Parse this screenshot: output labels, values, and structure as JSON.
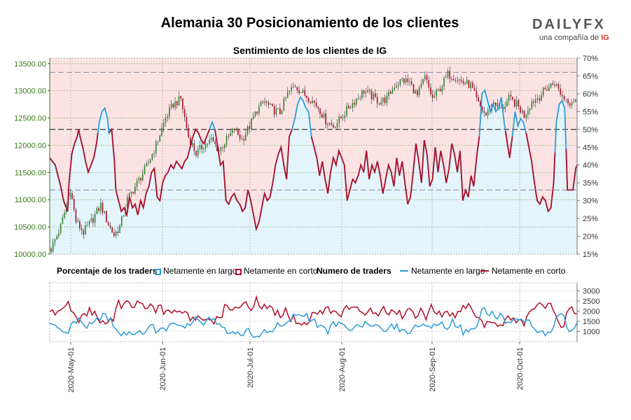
{
  "header": {
    "title": "Alemania 30 Posicionamiento de los clientes",
    "subtitle": "Sentimiento de los clientes de IG"
  },
  "logo": {
    "brand": "DAILYFX",
    "tagline": "una compañía de",
    "ig": "IG"
  },
  "legend": {
    "pct_header": "Porcentaje de los traders",
    "long_label": "Netamente en largo",
    "short_label": "Netamente en corto",
    "count_header": "Numero de traders",
    "count_long_label": "Netamente en largo",
    "count_short_label": "Netamente en corto"
  },
  "colors": {
    "long": "#2e9bd6",
    "short": "#b0102a",
    "long_fill": "#e4f4fb",
    "short_fill": "#fbe3e4",
    "candle_up": "#2a8a2a",
    "candle_down": "#b0102a",
    "axis_left": "#3a7a1a",
    "grid": "#7aaa5a"
  },
  "chart_data": [
    {
      "type": "candlestick+line",
      "title": "Sentimiento de los clientes de IG",
      "left_axis": {
        "min": 10000,
        "max": 13600,
        "ticks": [
          "10000.00",
          "10500.00",
          "11000.00",
          "11500.00",
          "12000.00",
          "12500.00",
          "13000.00",
          "13500.00"
        ]
      },
      "right_axis": {
        "min": 15,
        "max": 70,
        "ticks": [
          "15%",
          "20%",
          "25%",
          "30%",
          "35%",
          "40%",
          "45%",
          "50%",
          "55%",
          "60%",
          "65%",
          "70%"
        ]
      },
      "reference_lines_pct": [
        33,
        50,
        66
      ],
      "price_keypoints": [
        [
          0,
          10100
        ],
        [
          5,
          10500
        ],
        [
          8,
          10900
        ],
        [
          10,
          11200
        ],
        [
          13,
          10600
        ],
        [
          17,
          10400
        ],
        [
          22,
          10650
        ],
        [
          26,
          10900
        ],
        [
          30,
          10550
        ],
        [
          33,
          10350
        ],
        [
          36,
          10500
        ],
        [
          40,
          11000
        ],
        [
          45,
          11300
        ],
        [
          50,
          11600
        ],
        [
          55,
          12000
        ],
        [
          60,
          12500
        ],
        [
          64,
          12750
        ],
        [
          68,
          12850
        ],
        [
          72,
          12150
        ],
        [
          76,
          11850
        ],
        [
          80,
          12000
        ],
        [
          84,
          12100
        ],
        [
          88,
          11900
        ],
        [
          92,
          12100
        ],
        [
          96,
          12300
        ],
        [
          100,
          12100
        ],
        [
          104,
          12350
        ],
        [
          108,
          12650
        ],
        [
          112,
          12800
        ],
        [
          116,
          12650
        ],
        [
          120,
          12600
        ],
        [
          124,
          12950
        ],
        [
          128,
          13100
        ],
        [
          132,
          12950
        ],
        [
          136,
          12850
        ],
        [
          140,
          12700
        ],
        [
          144,
          12450
        ],
        [
          148,
          12350
        ],
        [
          152,
          12500
        ],
        [
          156,
          12700
        ],
        [
          160,
          12850
        ],
        [
          164,
          13000
        ],
        [
          168,
          12900
        ],
        [
          172,
          12800
        ],
        [
          176,
          12850
        ],
        [
          180,
          13100
        ],
        [
          184,
          13200
        ],
        [
          188,
          13150
        ],
        [
          192,
          12900
        ],
        [
          196,
          13250
        ],
        [
          200,
          12850
        ],
        [
          204,
          13050
        ],
        [
          208,
          13300
        ],
        [
          212,
          13250
        ],
        [
          216,
          13150
        ],
        [
          220,
          13100
        ],
        [
          224,
          12750
        ],
        [
          228,
          12550
        ],
        [
          232,
          12800
        ],
        [
          236,
          12650
        ],
        [
          240,
          12850
        ],
        [
          244,
          12750
        ],
        [
          248,
          12550
        ],
        [
          252,
          12800
        ],
        [
          256,
          12900
        ],
        [
          260,
          13050
        ],
        [
          264,
          13150
        ],
        [
          268,
          12900
        ],
        [
          272,
          12800
        ],
        [
          275,
          12850
        ]
      ],
      "long_pct_keypoints": [
        [
          0,
          42
        ],
        [
          4,
          40
        ],
        [
          6,
          37
        ],
        [
          8,
          34
        ],
        [
          10,
          30
        ],
        [
          12,
          28
        ],
        [
          13,
          27
        ],
        [
          14,
          35
        ],
        [
          16,
          43
        ],
        [
          18,
          46
        ],
        [
          20,
          48
        ],
        [
          21,
          50
        ],
        [
          22,
          48
        ],
        [
          24,
          45
        ],
        [
          26,
          41
        ],
        [
          28,
          38
        ],
        [
          30,
          40
        ],
        [
          32,
          42
        ],
        [
          34,
          46
        ],
        [
          36,
          52
        ],
        [
          38,
          55
        ],
        [
          40,
          56
        ],
        [
          42,
          53
        ],
        [
          43,
          49
        ],
        [
          45,
          50
        ],
        [
          47,
          41
        ],
        [
          48,
          33
        ],
        [
          50,
          30
        ],
        [
          52,
          27
        ],
        [
          54,
          28
        ],
        [
          56,
          26
        ],
        [
          58,
          31
        ],
        [
          60,
          28
        ],
        [
          62,
          29
        ],
        [
          64,
          26
        ],
        [
          66,
          30
        ],
        [
          68,
          28
        ],
        [
          70,
          32
        ],
        [
          72,
          34
        ],
        [
          74,
          38
        ],
        [
          76,
          39
        ],
        [
          78,
          31
        ],
        [
          80,
          30
        ],
        [
          82,
          35
        ],
        [
          84,
          37
        ],
        [
          86,
          38
        ],
        [
          88,
          40
        ],
        [
          90,
          39
        ],
        [
          92,
          41
        ],
        [
          94,
          40
        ],
        [
          96,
          39
        ],
        [
          98,
          41
        ],
        [
          100,
          42
        ],
        [
          102,
          45
        ],
        [
          104,
          48
        ],
        [
          106,
          50
        ],
        [
          108,
          49
        ],
        [
          110,
          47
        ],
        [
          112,
          46
        ],
        [
          114,
          48
        ],
        [
          116,
          50
        ],
        [
          118,
          52
        ],
        [
          120,
          50
        ],
        [
          122,
          45
        ],
        [
          124,
          40
        ],
        [
          126,
          41
        ],
        [
          128,
          30
        ],
        [
          130,
          29
        ],
        [
          132,
          31
        ],
        [
          134,
          32
        ],
        [
          136,
          30
        ],
        [
          138,
          29
        ],
        [
          140,
          27
        ],
        [
          142,
          28
        ],
        [
          144,
          33
        ],
        [
          146,
          30
        ],
        [
          148,
          26
        ],
        [
          150,
          22
        ],
        [
          152,
          24
        ],
        [
          154,
          28
        ],
        [
          156,
          32
        ],
        [
          158,
          30
        ],
        [
          160,
          31
        ],
        [
          162,
          35
        ],
        [
          164,
          40
        ],
        [
          166,
          43
        ],
        [
          168,
          45
        ],
        [
          170,
          40
        ],
        [
          172,
          36
        ],
        [
          174,
          48
        ],
        [
          176,
          50
        ],
        [
          178,
          53
        ],
        [
          180,
          57
        ],
        [
          182,
          59
        ],
        [
          184,
          58
        ],
        [
          186,
          56
        ],
        [
          188,
          55
        ],
        [
          190,
          48
        ],
        [
          192,
          45
        ],
        [
          194,
          42
        ],
        [
          196,
          37
        ],
        [
          198,
          41
        ],
        [
          200,
          36
        ],
        [
          202,
          32
        ],
        [
          204,
          38
        ],
        [
          206,
          42
        ],
        [
          208,
          40
        ],
        [
          210,
          44
        ],
        [
          212,
          42
        ],
        [
          214,
          40
        ],
        [
          216,
          30
        ],
        [
          218,
          33
        ],
        [
          220,
          36
        ],
        [
          222,
          35
        ],
        [
          224,
          37
        ],
        [
          226,
          40
        ],
        [
          228,
          38
        ],
        [
          230,
          44
        ],
        [
          232,
          36
        ],
        [
          234,
          40
        ],
        [
          236,
          38
        ],
        [
          238,
          41
        ],
        [
          240,
          37
        ],
        [
          242,
          32
        ],
        [
          244,
          36
        ],
        [
          246,
          40
        ],
        [
          248,
          38
        ],
        [
          250,
          34
        ],
        [
          252,
          42
        ],
        [
          254,
          37
        ],
        [
          256,
          41
        ],
        [
          258,
          35
        ],
        [
          260,
          29
        ],
        [
          262,
          31
        ],
        [
          264,
          38
        ],
        [
          266,
          46
        ],
        [
          268,
          41
        ],
        [
          270,
          35
        ],
        [
          272,
          47
        ],
        [
          274,
          43
        ],
        [
          276,
          34
        ],
        [
          278,
          36
        ],
        [
          280,
          45
        ],
        [
          282,
          38
        ],
        [
          284,
          44
        ],
        [
          286,
          40
        ],
        [
          288,
          35
        ],
        [
          290,
          39
        ],
        [
          292,
          46
        ],
        [
          294,
          43
        ],
        [
          296,
          38
        ],
        [
          298,
          44
        ],
        [
          300,
          30
        ],
        [
          302,
          33
        ],
        [
          304,
          31
        ],
        [
          306,
          37
        ],
        [
          308,
          34
        ],
        [
          310,
          42
        ],
        [
          312,
          48
        ],
        [
          314,
          60
        ],
        [
          316,
          61
        ],
        [
          318,
          58
        ],
        [
          320,
          55
        ],
        [
          322,
          57
        ],
        [
          324,
          55
        ],
        [
          326,
          56
        ],
        [
          328,
          59
        ],
        [
          330,
          52
        ],
        [
          332,
          47
        ],
        [
          334,
          42
        ],
        [
          336,
          48
        ],
        [
          338,
          55
        ],
        [
          340,
          51
        ],
        [
          342,
          53
        ],
        [
          344,
          52
        ],
        [
          346,
          49
        ],
        [
          348,
          45
        ],
        [
          350,
          41
        ],
        [
          352,
          35
        ],
        [
          354,
          30
        ],
        [
          356,
          29
        ],
        [
          358,
          31
        ],
        [
          360,
          30
        ],
        [
          362,
          27
        ],
        [
          364,
          28
        ],
        [
          366,
          35
        ],
        [
          368,
          52
        ],
        [
          370,
          57
        ],
        [
          372,
          58
        ],
        [
          374,
          56
        ],
        [
          376,
          33
        ],
        [
          378,
          33
        ],
        [
          380,
          33
        ],
        [
          382,
          39
        ],
        [
          383,
          40
        ]
      ]
    },
    {
      "type": "line",
      "title": "Numero de traders",
      "y_axis": {
        "min": 500,
        "max": 3400,
        "ticks": [
          "1000",
          "1500",
          "2000",
          "2500",
          "3000"
        ]
      },
      "x_ticks": [
        "2020-May-01",
        "2020-Jun-01",
        "2020-Jul-01",
        "2020-Aug-01",
        "2020-Sep-01",
        "2020-Oct-01"
      ],
      "series_long": "Netamente en largo",
      "series_short": "Netamente en corto"
    }
  ]
}
